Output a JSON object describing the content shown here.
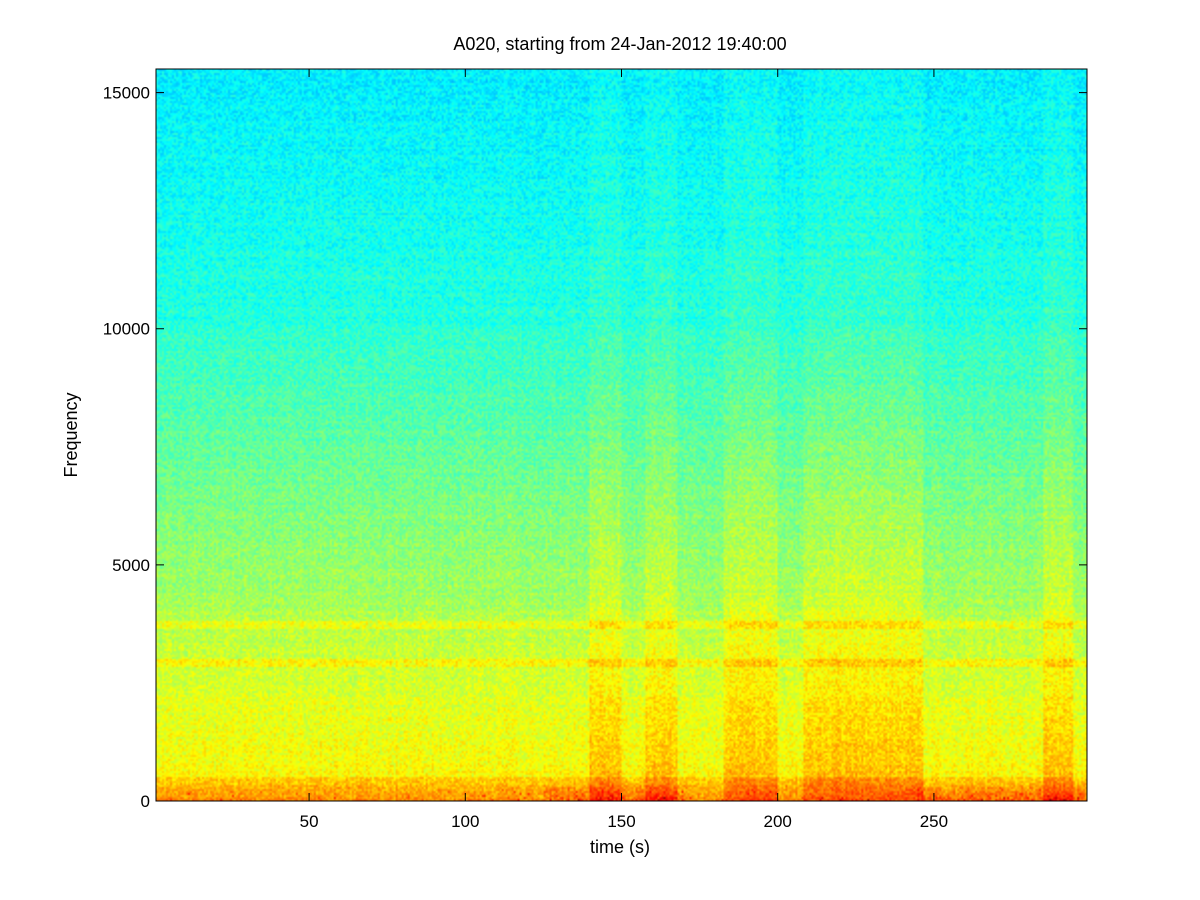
{
  "chart_data": {
    "type": "heatmap",
    "subtype": "spectrogram",
    "title": "A020, starting from 24-Jan-2012 19:40:00",
    "xlabel": "time (s)",
    "ylabel": "Frequency",
    "xlim": [
      1,
      299
    ],
    "ylim": [
      0,
      15500
    ],
    "xticks": [
      50,
      100,
      150,
      200,
      250
    ],
    "yticks": [
      0,
      5000,
      10000,
      15000
    ],
    "grid": false,
    "colormap": "jet",
    "colors": {
      "high_frequency_band": "#1fe0d8",
      "mid_frequency_band": "#60f0a0",
      "low_frequency_band": "#e8f830",
      "near_zero_band": "#ff9a10",
      "peak_energy": "#c01008"
    },
    "features": [
      {
        "label": "persistent low-frequency energy",
        "freq_range": [
          0,
          400
        ],
        "level": "high"
      },
      {
        "label": "horizontal band",
        "freq": 3700,
        "level": "elevated"
      },
      {
        "label": "horizontal band",
        "freq": 2900,
        "level": "elevated"
      },
      {
        "label": "broadband transient",
        "time_range": [
          140,
          150
        ],
        "freq_range": [
          0,
          9500
        ]
      },
      {
        "label": "broadband transient",
        "time_range": [
          158,
          168
        ],
        "freq_range": [
          0,
          10000
        ]
      },
      {
        "label": "broadband transient",
        "time_range": [
          183,
          200
        ],
        "freq_range": [
          0,
          9000
        ]
      },
      {
        "label": "broadband transient",
        "time_range": [
          208,
          247
        ],
        "freq_range": [
          0,
          9500
        ]
      },
      {
        "label": "broadband transient",
        "time_range": [
          285,
          295
        ],
        "freq_range": [
          0,
          8500
        ]
      }
    ]
  }
}
